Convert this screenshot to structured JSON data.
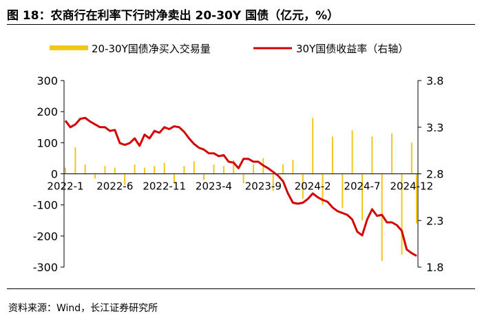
{
  "header": {
    "title": "图 18：农商行在利率下行时净卖出 20-30Y 国债（亿元，%）"
  },
  "footer": {
    "source": "资料来源：Wind，长江证券研究所"
  },
  "colors": {
    "bar": "#f5c518",
    "line": "#d40000",
    "axis": "#000000"
  },
  "chart_data": {
    "type": "bar+line",
    "x_ticks": [
      "2022-1",
      "2022-6",
      "2022-11",
      "2023-4",
      "2023-9",
      "2024-2",
      "2024-7",
      "2024-12"
    ],
    "y_left": {
      "ylim": [
        -300,
        300
      ],
      "ticks": [
        "300",
        "200",
        "100",
        "0",
        "-100",
        "-200",
        "-300"
      ]
    },
    "y_right": {
      "ylim": [
        1.8,
        3.8
      ],
      "ticks": [
        "3.8",
        "3.3",
        "2.8",
        "2.3",
        "1.8"
      ],
      "label": "右轴"
    },
    "legend": {
      "placement": "top"
    },
    "series": [
      {
        "name": "20-30Y国债净买入交易量",
        "type": "bar",
        "axis": "left",
        "months": [
          0,
          1,
          2,
          3,
          4,
          5,
          6,
          7,
          8,
          9,
          10,
          11,
          12,
          13,
          14,
          15,
          16,
          17,
          18,
          19,
          20,
          21,
          22,
          23,
          24,
          25,
          26,
          27,
          28,
          29,
          30,
          31,
          32,
          33,
          34,
          35,
          35.5
        ],
        "values": [
          20,
          85,
          30,
          -15,
          25,
          20,
          -35,
          30,
          20,
          25,
          35,
          -30,
          25,
          40,
          -20,
          30,
          25,
          45,
          -30,
          30,
          50,
          -55,
          30,
          45,
          -80,
          180,
          -100,
          120,
          -110,
          140,
          -150,
          120,
          -280,
          130,
          -260,
          100,
          -160
        ]
      },
      {
        "name": "30Y国债收益率",
        "type": "line",
        "axis": "right",
        "months": [
          0,
          0.5,
          1,
          1.5,
          2,
          2.5,
          3,
          3.5,
          4,
          4.5,
          5,
          5.5,
          6,
          6.5,
          7,
          7.5,
          8,
          8.5,
          9,
          9.5,
          10,
          10.5,
          11,
          11.5,
          12,
          12.5,
          13,
          13.5,
          14,
          14.5,
          15,
          15.5,
          16,
          16.5,
          17,
          17.5,
          18,
          18.5,
          19,
          19.5,
          20,
          20.5,
          21,
          21.5,
          22,
          22.5,
          23,
          23.5,
          24,
          24.5,
          25,
          25.5,
          26,
          26.5,
          27,
          27.5,
          28,
          28.5,
          29,
          29.5,
          30,
          30.5,
          31,
          31.5,
          32,
          32.5,
          33,
          33.5,
          34,
          34.5,
          35,
          35.5
        ],
        "values": [
          3.37,
          3.3,
          3.33,
          3.39,
          3.4,
          3.36,
          3.33,
          3.3,
          3.3,
          3.26,
          3.27,
          3.13,
          3.11,
          3.13,
          3.18,
          3.1,
          3.22,
          3.18,
          3.26,
          3.24,
          3.3,
          3.28,
          3.31,
          3.3,
          3.25,
          3.18,
          3.12,
          3.08,
          3.06,
          3.02,
          3.02,
          2.99,
          3.0,
          2.93,
          2.92,
          2.86,
          2.96,
          2.96,
          2.93,
          2.93,
          2.89,
          2.86,
          2.82,
          2.78,
          2.72,
          2.59,
          2.49,
          2.48,
          2.49,
          2.53,
          2.59,
          2.55,
          2.52,
          2.5,
          2.44,
          2.4,
          2.38,
          2.36,
          2.31,
          2.18,
          2.14,
          2.31,
          2.42,
          2.35,
          2.36,
          2.28,
          2.28,
          2.25,
          2.19,
          1.99,
          1.95,
          1.92
        ]
      }
    ]
  }
}
